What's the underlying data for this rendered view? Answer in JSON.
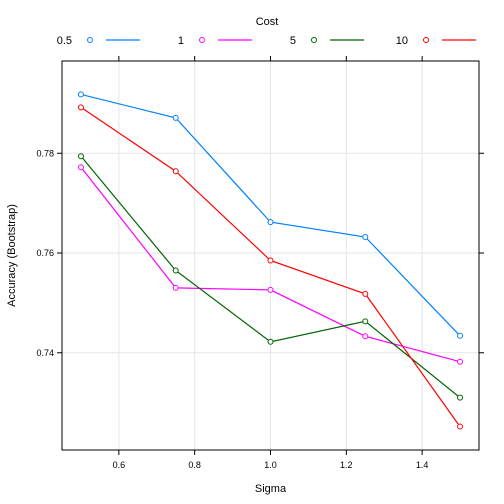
{
  "chart_data": {
    "type": "line",
    "title": "",
    "xlabel": "Sigma",
    "ylabel": "Accuracy (Bootstrap)",
    "xlim": [
      0.45,
      1.55
    ],
    "ylim": [
      0.7205,
      0.7985
    ],
    "xticks": [
      0.6,
      0.8,
      1.0,
      1.2,
      1.4
    ],
    "xtick_labels": [
      "0.6",
      "0.8",
      "1.0",
      "1.2",
      "1.4"
    ],
    "yticks": [
      0.74,
      0.76,
      0.78
    ],
    "ytick_labels": [
      "0.74",
      "0.76",
      "0.78"
    ],
    "grid": true,
    "legend": {
      "title": "Cost",
      "placement": "top"
    },
    "x": [
      0.5,
      0.75,
      1.0,
      1.25,
      1.5
    ],
    "series": [
      {
        "name": "0.5",
        "color": "#0080ff",
        "values": [
          0.7918,
          0.7871,
          0.7662,
          0.7632,
          0.7434
        ]
      },
      {
        "name": "1",
        "color": "#ff00ff",
        "values": [
          0.7772,
          0.753,
          0.7526,
          0.7433,
          0.7382
        ]
      },
      {
        "name": "5",
        "color": "#006400",
        "values": [
          0.7794,
          0.7565,
          0.7422,
          0.7463,
          0.731
        ]
      },
      {
        "name": "10",
        "color": "#ff0000",
        "values": [
          0.7892,
          0.7764,
          0.7585,
          0.7518,
          0.7252
        ]
      }
    ]
  }
}
